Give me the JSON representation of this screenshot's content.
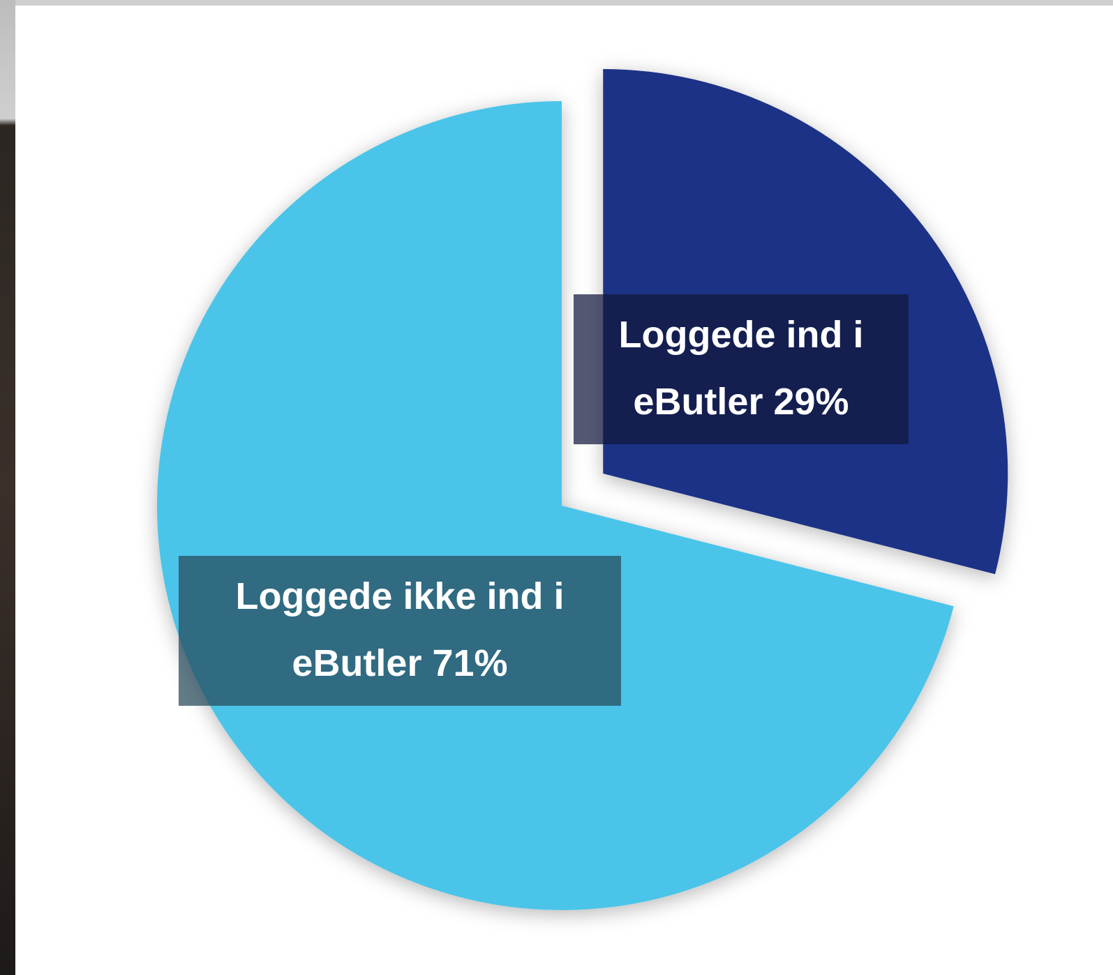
{
  "chart_data": {
    "type": "pie",
    "categories": [
      "Loggede ind i eButler",
      "Loggede ikke ind i eButler"
    ],
    "values": [
      29,
      71
    ],
    "value_labels": [
      "29%",
      "71%"
    ],
    "colors": [
      "#1f3286",
      "#4cc4e9"
    ],
    "exploded": [
      true,
      false
    ]
  }
}
